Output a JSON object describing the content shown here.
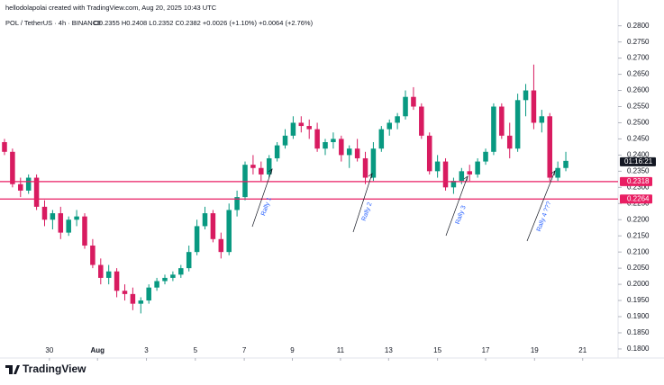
{
  "chart_data": {
    "type": "candlestick",
    "attribution": "hellodolapolai created with TradingView.com, Aug 20, 2025 10:43 UTC",
    "symbol": "POL / TetherUS · 4h · BINANCE",
    "ohlc_summary": "O0.2355 H0.2408 L0.2352 C0.2382 +0.0026 (+1.10%) +0.0064 (+2.76%)",
    "up_color": "#089981",
    "down_color": "#d81b60",
    "open": [
      0.244,
      0.241,
      0.231,
      0.229,
      0.233,
      0.224,
      0.22,
      0.222,
      0.216,
      0.22,
      0.221,
      0.212,
      0.206,
      0.202,
      0.204,
      0.198,
      0.197,
      0.194,
      0.195,
      0.199,
      0.201,
      0.202,
      0.203,
      0.205,
      0.21,
      0.218,
      0.222,
      0.214,
      0.21,
      0.223,
      0.227,
      0.237,
      0.236,
      0.234,
      0.239,
      0.243,
      0.246,
      0.25,
      0.249,
      0.248,
      0.242,
      0.244,
      0.245,
      0.24,
      0.242,
      0.239,
      0.233,
      0.242,
      0.248,
      0.25,
      0.252,
      0.258,
      0.255,
      0.246,
      0.235,
      0.238,
      0.23,
      0.232,
      0.235,
      0.234,
      0.238,
      0.241,
      0.255,
      0.246,
      0.242,
      0.257,
      0.26,
      0.25,
      0.252,
      0.233,
      0.236
    ],
    "high": [
      0.245,
      0.242,
      0.233,
      0.234,
      0.234,
      0.226,
      0.223,
      0.224,
      0.221,
      0.223,
      0.222,
      0.214,
      0.208,
      0.206,
      0.205,
      0.2,
      0.199,
      0.196,
      0.2,
      0.202,
      0.203,
      0.204,
      0.206,
      0.212,
      0.22,
      0.224,
      0.223,
      0.216,
      0.225,
      0.229,
      0.238,
      0.24,
      0.238,
      0.24,
      0.244,
      0.248,
      0.252,
      0.252,
      0.251,
      0.25,
      0.245,
      0.247,
      0.246,
      0.243,
      0.245,
      0.241,
      0.244,
      0.249,
      0.251,
      0.253,
      0.26,
      0.261,
      0.256,
      0.247,
      0.24,
      0.239,
      0.233,
      0.236,
      0.237,
      0.239,
      0.242,
      0.256,
      0.256,
      0.25,
      0.259,
      0.262,
      0.268,
      0.254,
      0.253,
      0.238,
      0.241
    ],
    "low": [
      0.24,
      0.23,
      0.227,
      0.228,
      0.223,
      0.218,
      0.217,
      0.214,
      0.215,
      0.218,
      0.211,
      0.205,
      0.2,
      0.2,
      0.196,
      0.195,
      0.192,
      0.191,
      0.194,
      0.198,
      0.2,
      0.201,
      0.202,
      0.204,
      0.209,
      0.217,
      0.213,
      0.208,
      0.209,
      0.221,
      0.226,
      0.234,
      0.232,
      0.233,
      0.238,
      0.242,
      0.245,
      0.247,
      0.245,
      0.241,
      0.24,
      0.242,
      0.238,
      0.236,
      0.238,
      0.231,
      0.232,
      0.241,
      0.246,
      0.248,
      0.251,
      0.254,
      0.245,
      0.234,
      0.233,
      0.229,
      0.228,
      0.231,
      0.232,
      0.233,
      0.237,
      0.24,
      0.245,
      0.239,
      0.241,
      0.252,
      0.248,
      0.247,
      0.232,
      0.232,
      0.235
    ],
    "close": [
      0.241,
      0.231,
      0.229,
      0.233,
      0.224,
      0.22,
      0.222,
      0.216,
      0.22,
      0.221,
      0.212,
      0.206,
      0.202,
      0.204,
      0.198,
      0.197,
      0.194,
      0.195,
      0.199,
      0.201,
      0.202,
      0.203,
      0.205,
      0.21,
      0.218,
      0.222,
      0.214,
      0.21,
      0.223,
      0.227,
      0.237,
      0.236,
      0.234,
      0.239,
      0.243,
      0.246,
      0.25,
      0.249,
      0.248,
      0.242,
      0.244,
      0.245,
      0.24,
      0.242,
      0.239,
      0.233,
      0.242,
      0.248,
      0.25,
      0.252,
      0.258,
      0.255,
      0.246,
      0.235,
      0.238,
      0.23,
      0.232,
      0.235,
      0.234,
      0.238,
      0.241,
      0.255,
      0.246,
      0.242,
      0.257,
      0.26,
      0.25,
      0.252,
      0.233,
      0.236,
      0.2382
    ],
    "xlim": [
      -0.56,
      76.4
    ],
    "xticks": [
      {
        "value": 5.6,
        "label": "30"
      },
      {
        "value": 11.6,
        "label": "Aug"
      },
      {
        "value": 17.7,
        "label": "3"
      },
      {
        "value": 23.8,
        "label": "5"
      },
      {
        "value": 29.9,
        "label": "7"
      },
      {
        "value": 35.9,
        "label": "9"
      },
      {
        "value": 41.9,
        "label": "11"
      },
      {
        "value": 47.9,
        "label": "13"
      },
      {
        "value": 54,
        "label": "15"
      },
      {
        "value": 60,
        "label": "17"
      },
      {
        "value": 66.1,
        "label": "19"
      },
      {
        "value": 72.1,
        "label": "21"
      }
    ],
    "ylim": [
      0.1772,
      0.2852
    ],
    "yticks": [
      {
        "value": 0.28,
        "label": "0.2800"
      },
      {
        "value": 0.275,
        "label": "0.2750"
      },
      {
        "value": 0.27,
        "label": "0.2700"
      },
      {
        "value": 0.265,
        "label": "0.2650"
      },
      {
        "value": 0.26,
        "label": "0.2600"
      },
      {
        "value": 0.255,
        "label": "0.2550"
      },
      {
        "value": 0.25,
        "label": "0.2500"
      },
      {
        "value": 0.245,
        "label": "0.2450"
      },
      {
        "value": 0.24,
        "label": "0.2400"
      },
      {
        "value": 0.235,
        "label": "0.2350"
      },
      {
        "value": 0.23,
        "label": "0.2300"
      },
      {
        "value": 0.225,
        "label": "0.2250"
      },
      {
        "value": 0.22,
        "label": "0.2200"
      },
      {
        "value": 0.215,
        "label": "0.2150"
      },
      {
        "value": 0.21,
        "label": "0.2100"
      },
      {
        "value": 0.205,
        "label": "0.2050"
      },
      {
        "value": 0.2,
        "label": "0.2000"
      },
      {
        "value": 0.195,
        "label": "0.1950"
      },
      {
        "value": 0.19,
        "label": "0.1900"
      },
      {
        "value": 0.185,
        "label": "0.1850"
      },
      {
        "value": 0.18,
        "label": "0.1800"
      }
    ],
    "levels": [
      {
        "value": 0.2318,
        "label": "0.2318",
        "color": "#e91e63"
      },
      {
        "value": 0.2264,
        "label": "0.2264",
        "color": "#e91e63"
      }
    ],
    "countdown": "01:16:21",
    "annotations": [
      "Rally 1",
      "Rally 2",
      "Rally 3",
      "Rally 4 ???"
    ],
    "brand": "TradingView"
  }
}
